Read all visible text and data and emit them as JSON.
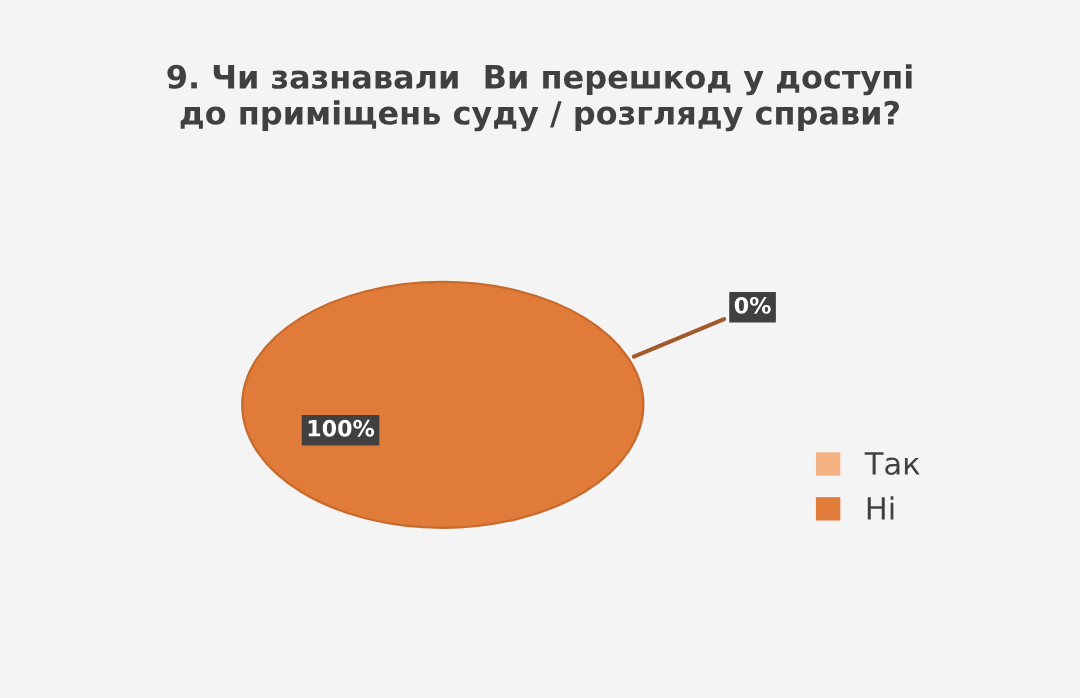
{
  "chart_data": {
    "type": "pie",
    "title": "9. Чи зазнавали  Ви перешкод у доступі\nдо приміщень суду / розгляду справи?",
    "categories": [
      "Так",
      "Ні"
    ],
    "values": [
      0,
      100
    ],
    "colors": [
      "#f4b183",
      "#e07b39"
    ],
    "value_labels": [
      "0%",
      "100%"
    ],
    "legend": "right"
  }
}
